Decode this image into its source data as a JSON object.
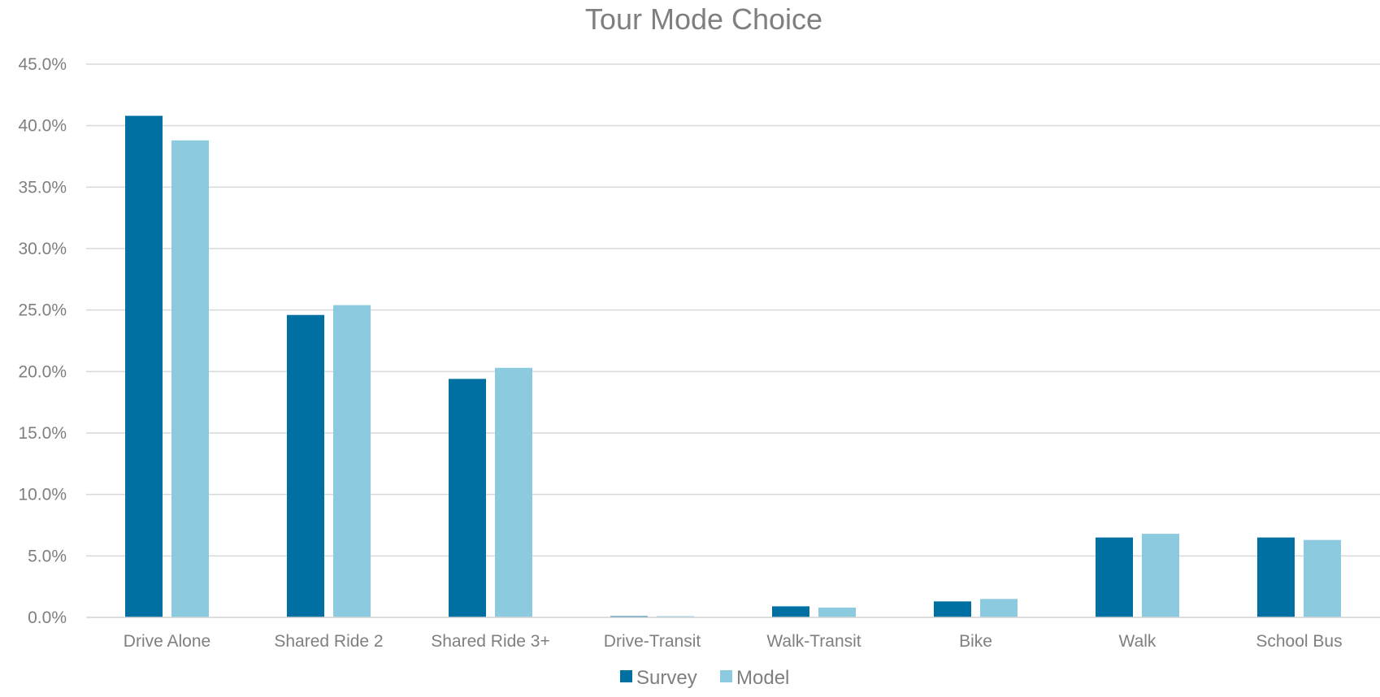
{
  "chart_data": {
    "type": "bar",
    "title": "Tour Mode Choice",
    "xlabel": "",
    "ylabel": "",
    "categories": [
      "Drive Alone",
      "Shared Ride 2",
      "Shared Ride 3+",
      "Drive-Transit",
      "Walk-Transit",
      "Bike",
      "Walk",
      "School Bus"
    ],
    "series": [
      {
        "name": "Survey",
        "color": "#0070a3",
        "values": [
          40.8,
          24.6,
          19.4,
          0.1,
          0.9,
          1.3,
          6.5,
          6.5
        ]
      },
      {
        "name": "Model",
        "color": "#8bcadf",
        "values": [
          38.8,
          25.4,
          20.3,
          0.1,
          0.8,
          1.5,
          6.8,
          6.3
        ]
      }
    ],
    "ylim": [
      0,
      45
    ],
    "yticks": [
      "0.0%",
      "5.0%",
      "10.0%",
      "15.0%",
      "20.0%",
      "25.0%",
      "30.0%",
      "35.0%",
      "40.0%",
      "45.0%"
    ],
    "ytick_values": [
      0,
      5,
      10,
      15,
      20,
      25,
      30,
      35,
      40,
      45
    ],
    "grid": true,
    "legend_position": "bottom"
  }
}
